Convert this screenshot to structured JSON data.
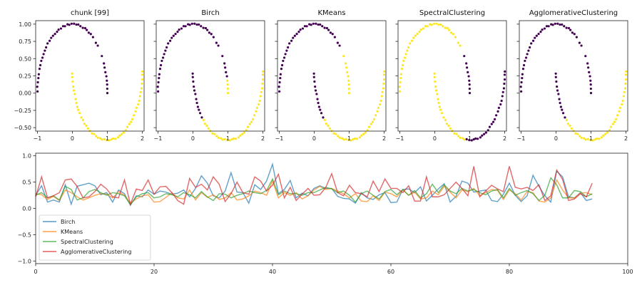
{
  "colors": {
    "cluster_0": "#440154",
    "cluster_1": "#fde725"
  },
  "chart_data": [
    {
      "type": "scatter",
      "title": "chunk [99]",
      "xlim": [
        -1.05,
        2.05
      ],
      "ylim": [
        -0.55,
        1.05
      ],
      "xticks": [
        -1,
        0,
        1,
        2
      ],
      "yticks": [
        1.0,
        0.75,
        0.5,
        0.25,
        0.0,
        -0.25,
        -0.5
      ],
      "xtick_labels": [
        "−1",
        "0",
        "1",
        "2"
      ],
      "ytick_labels": [
        "1.00",
        "0.75",
        "0.50",
        "0.25",
        "0.00",
        "−0.25",
        "−0.50"
      ],
      "labels": "truth"
    },
    {
      "type": "scatter",
      "title": "Birch",
      "xlim": [
        -1.05,
        2.05
      ],
      "ylim": [
        -0.55,
        1.05
      ],
      "xticks": [
        -1,
        0,
        1,
        2
      ],
      "xtick_labels": [
        "−1",
        "0",
        "1",
        "2"
      ],
      "labels": "birch"
    },
    {
      "type": "scatter",
      "title": "KMeans",
      "xlim": [
        -1.05,
        2.05
      ],
      "ylim": [
        -0.55,
        1.05
      ],
      "xticks": [
        -1,
        0,
        1,
        2
      ],
      "xtick_labels": [
        "−1",
        "0",
        "1",
        "2"
      ],
      "labels": "kmeans"
    },
    {
      "type": "scatter",
      "title": "SpectralClustering",
      "xlim": [
        -1.05,
        2.05
      ],
      "ylim": [
        -0.55,
        1.05
      ],
      "xticks": [
        -1,
        0,
        1,
        2
      ],
      "xtick_labels": [
        "−1",
        "0",
        "1",
        "2"
      ],
      "labels": "spectral"
    },
    {
      "type": "scatter",
      "title": "AgglomerativeClustering",
      "xlim": [
        -1.05,
        2.05
      ],
      "ylim": [
        -0.55,
        1.05
      ],
      "xticks": [
        -1,
        0,
        1,
        2
      ],
      "xtick_labels": [
        "−1",
        "0",
        "1",
        "2"
      ],
      "labels": "agglo"
    },
    {
      "type": "line",
      "xlim": [
        0,
        100
      ],
      "ylim": [
        -1.05,
        1.05
      ],
      "xticks": [
        0,
        20,
        40,
        60,
        80,
        100
      ],
      "xtick_labels": [
        "0",
        "20",
        "40",
        "60",
        "80",
        "100"
      ],
      "yticks": [
        1.0,
        0.5,
        0.0,
        -0.5,
        -1.0
      ],
      "ytick_labels": [
        "1.0",
        "0.5",
        "0.0",
        "−0.5",
        "−1.0"
      ],
      "legend_placement": "lower-left",
      "series": [
        {
          "name": "Birch",
          "color": "#1f77b4",
          "values": [
            0.25,
            0.43,
            0.12,
            0.16,
            0.12,
            0.45,
            0.08,
            0.42,
            0.45,
            0.48,
            0.43,
            0.26,
            0.3,
            0.12,
            0.35,
            0.28,
            0.06,
            0.24,
            0.22,
            0.35,
            0.27,
            0.33,
            0.31,
            0.27,
            0.29,
            0.35,
            0.22,
            0.38,
            0.62,
            0.48,
            0.24,
            0.2,
            0.33,
            0.68,
            0.31,
            0.3,
            0.1,
            0.45,
            0.36,
            0.52,
            0.84,
            0.28,
            0.36,
            0.53,
            0.2,
            0.29,
            0.24,
            0.38,
            0.43,
            0.38,
            0.38,
            0.23,
            0.19,
            0.18,
            0.1,
            0.3,
            0.2,
            0.17,
            0.26,
            0.3,
            0.11,
            0.12,
            0.36,
            0.37,
            0.3,
            0.41,
            0.14,
            0.25,
            0.37,
            0.47,
            0.12,
            0.23,
            0.52,
            0.48,
            0.31,
            0.33,
            0.35,
            0.15,
            0.13,
            0.27,
            0.48,
            0.25,
            0.13,
            0.24,
            0.63,
            0.42,
            0.24,
            0.12,
            0.71,
            0.6,
            0.22,
            0.2,
            0.3,
            0.15,
            0.18
          ]
        },
        {
          "name": "KMeans",
          "color": "#ff7f0e",
          "values": [
            0.28,
            0.26,
            0.17,
            0.23,
            0.15,
            0.35,
            0.3,
            0.22,
            0.16,
            0.2,
            0.25,
            0.28,
            0.27,
            0.2,
            0.32,
            0.25,
            0.1,
            0.18,
            0.24,
            0.26,
            0.12,
            0.13,
            0.21,
            0.3,
            0.2,
            0.18,
            0.35,
            0.16,
            0.3,
            0.21,
            0.26,
            0.17,
            0.2,
            0.3,
            0.16,
            0.18,
            0.24,
            0.33,
            0.3,
            0.25,
            0.52,
            0.2,
            0.3,
            0.25,
            0.3,
            0.18,
            0.24,
            0.35,
            0.42,
            0.36,
            0.38,
            0.33,
            0.28,
            0.2,
            0.28,
            0.14,
            0.13,
            0.24,
            0.15,
            0.31,
            0.28,
            0.22,
            0.35,
            0.25,
            0.31,
            0.18,
            0.2,
            0.33,
            0.26,
            0.42,
            0.31,
            0.2,
            0.35,
            0.32,
            0.38,
            0.24,
            0.3,
            0.36,
            0.34,
            0.17,
            0.35,
            0.28,
            0.16,
            0.32,
            0.3,
            0.14,
            0.12,
            0.2,
            0.54,
            0.35,
            0.2,
            0.2,
            0.29,
            0.3,
            0.26
          ]
        },
        {
          "name": "SpectralClustering",
          "color": "#2ca02c",
          "values": [
            0.25,
            0.3,
            0.2,
            0.24,
            0.16,
            0.42,
            0.36,
            0.16,
            0.2,
            0.32,
            0.36,
            0.3,
            0.25,
            0.3,
            0.28,
            0.24,
            0.07,
            0.22,
            0.28,
            0.3,
            0.2,
            0.22,
            0.28,
            0.26,
            0.22,
            0.3,
            0.26,
            0.2,
            0.32,
            0.22,
            0.15,
            0.28,
            0.27,
            0.2,
            0.25,
            0.28,
            0.33,
            0.3,
            0.28,
            0.34,
            0.56,
            0.26,
            0.33,
            0.28,
            0.28,
            0.25,
            0.3,
            0.3,
            0.35,
            0.4,
            0.37,
            0.3,
            0.33,
            0.25,
            0.12,
            0.28,
            0.33,
            0.25,
            0.18,
            0.32,
            0.36,
            0.26,
            0.36,
            0.25,
            0.34,
            0.2,
            0.28,
            0.46,
            0.3,
            0.45,
            0.33,
            0.28,
            0.38,
            0.33,
            0.36,
            0.3,
            0.26,
            0.33,
            0.36,
            0.2,
            0.38,
            0.25,
            0.3,
            0.34,
            0.28,
            0.15,
            0.25,
            0.58,
            0.45,
            0.2,
            0.2,
            0.34,
            0.32,
            0.22,
            0.28
          ]
        },
        {
          "name": "AgglomerativeClustering",
          "color": "#d62728",
          "values": [
            0.22,
            0.6,
            0.2,
            0.24,
            0.3,
            0.54,
            0.56,
            0.42,
            0.2,
            0.22,
            0.32,
            0.46,
            0.37,
            0.22,
            0.2,
            0.54,
            0.08,
            0.37,
            0.34,
            0.54,
            0.27,
            0.41,
            0.42,
            0.3,
            0.15,
            0.08,
            0.57,
            0.4,
            0.46,
            0.35,
            0.6,
            0.46,
            0.13,
            0.28,
            0.5,
            0.3,
            0.27,
            0.6,
            0.52,
            0.33,
            0.44,
            0.65,
            0.2,
            0.4,
            0.15,
            0.27,
            0.38,
            0.25,
            0.26,
            0.4,
            0.66,
            0.3,
            0.24,
            0.44,
            0.3,
            0.28,
            0.22,
            0.52,
            0.32,
            0.56,
            0.38,
            0.38,
            0.3,
            0.43,
            0.14,
            0.14,
            0.6,
            0.22,
            0.22,
            0.26,
            0.38,
            0.5,
            0.38,
            0.24,
            0.8,
            0.22,
            0.33,
            0.44,
            0.37,
            0.32,
            0.8,
            0.4,
            0.37,
            0.4,
            0.34,
            0.45,
            0.15,
            0.24,
            0.73,
            0.55,
            0.15,
            0.18,
            0.28,
            0.22,
            0.48
          ]
        }
      ]
    }
  ]
}
